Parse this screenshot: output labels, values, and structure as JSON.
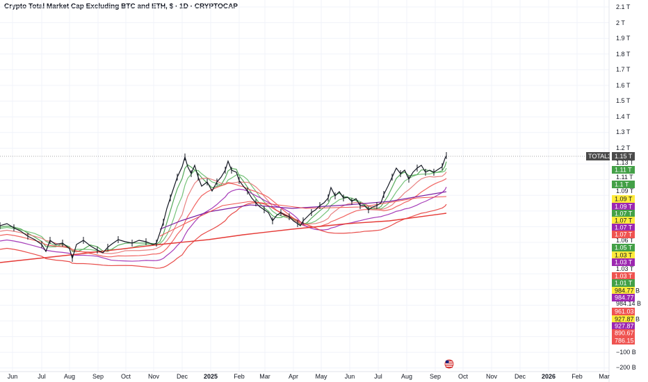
{
  "title": "Crypto Total Market Cap Excluding BTC and ETH, $ · 1D · CRYPTOCAP",
  "symbol_tag": "TOTAL3",
  "chart_data": {
    "type": "line",
    "title": "Crypto Total Market Cap Excluding BTC and ETH, $ · 1D · CRYPTOCAP",
    "y_axis": {
      "unit": "$",
      "range": [
        -200000000000,
        2100000000000
      ],
      "scale": "linear",
      "ticks": [
        {
          "label": "2.1 T",
          "value": 2100000000000
        },
        {
          "label": "2 T",
          "value": 2000000000000
        },
        {
          "label": "1.9 T",
          "value": 1900000000000
        },
        {
          "label": "1.8 T",
          "value": 1800000000000
        },
        {
          "label": "1.7 T",
          "value": 1700000000000
        },
        {
          "label": "1.6 T",
          "value": 1600000000000
        },
        {
          "label": "1.5 T",
          "value": 1500000000000
        },
        {
          "label": "1.4 T",
          "value": 1400000000000
        },
        {
          "label": "1.3 T",
          "value": 1300000000000
        },
        {
          "label": "1.2 T",
          "value": 1200000000000
        },
        {
          "label": "1.13 T",
          "value": 1130000000000
        },
        {
          "label": "1.11 T",
          "value": 1110000000000
        },
        {
          "label": "1.09 T",
          "value": 1090000000000
        },
        {
          "label": "1.06 T",
          "value": 1060000000000
        },
        {
          "label": "1.03 T",
          "value": 1030000000000
        },
        {
          "label": "984.14 B",
          "value": 984140000000
        },
        {
          "label": "−100 B",
          "value": -100000000000
        },
        {
          "label": "−200 B",
          "value": -200000000000
        }
      ]
    },
    "x_axis": {
      "labels": [
        "Jun",
        "Jul",
        "Aug",
        "Sep",
        "Oct",
        "Nov",
        "Dec",
        "2025",
        "Feb",
        "Mar",
        "Apr",
        "May",
        "Jun",
        "Jul",
        "Aug",
        "Sep",
        "Oct",
        "Nov",
        "Dec",
        "2026",
        "Feb",
        "Mar"
      ],
      "bold_labels": [
        "2025",
        "2026"
      ]
    },
    "last_price": {
      "label": "1.15 T",
      "value": 1150000000000
    },
    "price_badges": [
      {
        "label": "1.11 T",
        "color": "#43a047"
      },
      {
        "label": "1.1 T",
        "color": "#43a047"
      },
      {
        "label": "1.09 T",
        "color": "#ffeb3b"
      },
      {
        "label": "1.09 T",
        "color": "#9c27b0"
      },
      {
        "label": "1.07 T",
        "color": "#43a047"
      },
      {
        "label": "1.07 T",
        "color": "#ffeb3b"
      },
      {
        "label": "1.07 T",
        "color": "#9c27b0"
      },
      {
        "label": "1.07 T",
        "color": "#ef5350"
      },
      {
        "label": "1.05 T",
        "color": "#43a047"
      },
      {
        "label": "1.03 T",
        "color": "#ffeb3b"
      },
      {
        "label": "1.03 T",
        "color": "#9c27b0"
      },
      {
        "label": "1.03 T",
        "color": "#ef5350"
      },
      {
        "label": "1.01 T",
        "color": "#43a047"
      },
      {
        "label": "984.77 B",
        "color": "#ffeb3b"
      },
      {
        "label": "984.77 B",
        "color": "#9c27b0"
      },
      {
        "label": "961.03 B",
        "color": "#ef5350"
      },
      {
        "label": "927.87 B",
        "color": "#ffeb3b"
      },
      {
        "label": "927.87 B",
        "color": "#9c27b0"
      },
      {
        "label": "890.67 B",
        "color": "#ef5350"
      },
      {
        "label": "786.15 B",
        "color": "#ef5350"
      }
    ],
    "price_series": [
      {
        "x": "Jun",
        "y": 675
      },
      {
        "x": "Jul",
        "y": 640
      },
      {
        "x": "Aug",
        "y": 615
      },
      {
        "x": "Sep",
        "y": 600
      },
      {
        "x": "Oct",
        "y": 635
      },
      {
        "x": "Nov",
        "y": 640
      },
      {
        "x": "Dec",
        "y": 1130
      },
      {
        "x": "2025",
        "y": 1000
      },
      {
        "x": "Feb",
        "y": 1080
      },
      {
        "x": "Mar",
        "y": 870
      },
      {
        "x": "Apr",
        "y": 800
      },
      {
        "x": "May",
        "y": 940
      },
      {
        "x": "Jun",
        "y": 880
      },
      {
        "x": "Jul",
        "y": 870
      },
      {
        "x": "Aug",
        "y": 1090
      },
      {
        "x": "Sep",
        "y": 1150
      }
    ],
    "moving_averages_colors": [
      "#43a047",
      "#ffeb3b",
      "#9c27b0",
      "#ef5350"
    ]
  },
  "colors": {
    "grid": "#f0f3fa",
    "text": "#131722",
    "candle": "#131722",
    "last_price_badge": "#4a4a4a"
  },
  "icons": {
    "flag": "us-flag-icon"
  }
}
